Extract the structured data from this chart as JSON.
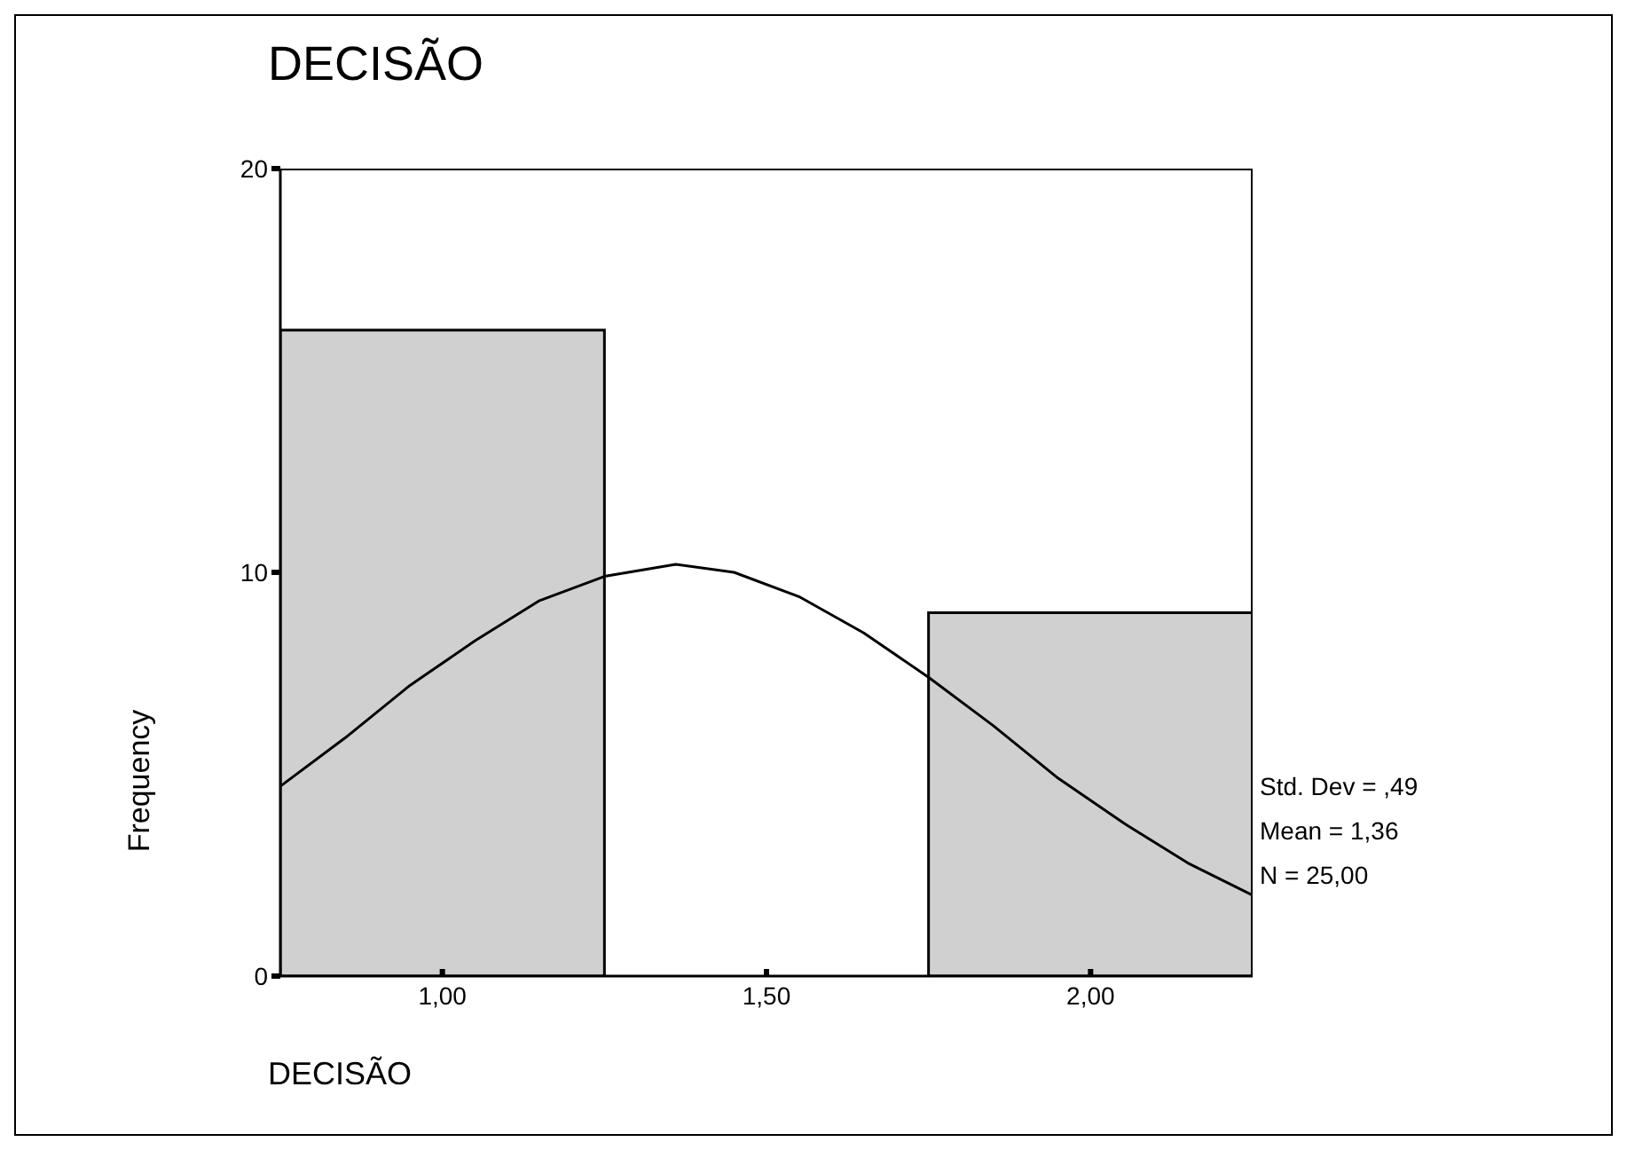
{
  "chart_data": {
    "type": "histogram",
    "title": "DECISÃO",
    "xlabel": "DECISÃO",
    "ylabel": "Frequency",
    "bins": [
      0.75,
      1.25,
      1.75,
      2.25
    ],
    "values": [
      16,
      0,
      9
    ],
    "color": "#d0d0d0",
    "series": [
      {
        "type": "line",
        "color": "#000000",
        "x": [
          0.75,
          0.85,
          0.95,
          1.05,
          1.15,
          1.25,
          1.36,
          1.45,
          1.55,
          1.65,
          1.75,
          1.85,
          1.95,
          2.05,
          2.15,
          2.25
        ],
        "values": [
          4.7,
          5.9,
          7.2,
          8.3,
          9.3,
          9.9,
          10.2,
          10.0,
          9.4,
          8.5,
          7.4,
          6.2,
          4.9,
          3.8,
          2.8,
          2.0
        ]
      }
    ],
    "xlim": [
      0.75,
      2.25
    ],
    "ylim": [
      0,
      20
    ],
    "xticks": [
      {
        "value": 1,
        "label": "1,00"
      },
      {
        "value": 1.5,
        "label": "1,50"
      },
      {
        "value": 2,
        "label": "2,00"
      }
    ],
    "yticks": [
      0,
      10,
      20
    ],
    "annotations": [
      "Std. Dev = ,49",
      "Mean = 1,36",
      "N = 25,00"
    ]
  }
}
